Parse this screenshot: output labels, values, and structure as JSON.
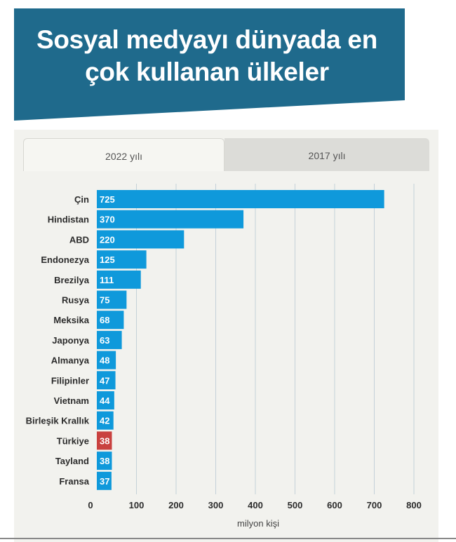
{
  "title_lines": [
    "Sosyal medyayı dünyada en",
    "çok kullanan ülkeler"
  ],
  "tabs": [
    {
      "label": "2022 yılı",
      "active": true
    },
    {
      "label": "2017 yılı",
      "active": false
    }
  ],
  "colors": {
    "banner": "#1f6a8c",
    "bar": "#0f99db",
    "highlight": "#c9413f",
    "grid": "#c4d1d8"
  },
  "chart_data": {
    "type": "bar",
    "orientation": "horizontal",
    "categories": [
      "Çin",
      "Hindistan",
      "ABD",
      "Endonezya",
      "Brezilya",
      "Rusya",
      "Meksika",
      "Japonya",
      "Almanya",
      "Filipinler",
      "Vietnam",
      "Birleşik Krallık",
      "Türkiye",
      "Tayland",
      "Fransa"
    ],
    "values": [
      725,
      370,
      220,
      125,
      111,
      75,
      68,
      63,
      48,
      47,
      44,
      42,
      38,
      38,
      37
    ],
    "highlight_category": "Türkiye",
    "xlabel": "milyon kişi",
    "ylabel": "",
    "title": "",
    "xlim": [
      0,
      800
    ],
    "xticks": [
      0,
      100,
      200,
      300,
      400,
      500,
      600,
      700,
      800
    ],
    "grid": true,
    "legend": "none"
  }
}
